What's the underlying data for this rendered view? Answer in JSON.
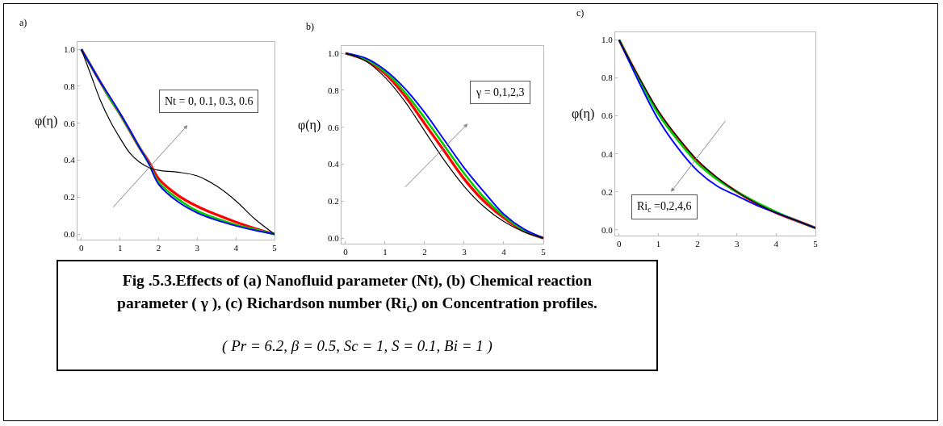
{
  "chart_data": [
    {
      "type": "line",
      "ylabel": "φ(η)",
      "xlim": [
        -0.1,
        5.0
      ],
      "ylim": [
        -0.03,
        1.04
      ],
      "xticks": [
        0,
        1,
        2,
        3,
        4,
        5
      ],
      "yticks": [
        {
          "value": 0,
          "label": "0.0"
        },
        {
          "value": 0.2,
          "label": "0.2"
        },
        {
          "value": 0.4,
          "label": "0.4"
        },
        {
          "value": 0.6,
          "label": "0.6"
        },
        {
          "value": 0.8,
          "label": "0.8"
        },
        {
          "value": 1,
          "label": "1.0"
        }
      ],
      "grid": false,
      "marker": "none",
      "line_style": "solid",
      "x": [
        0,
        0.25,
        0.5,
        0.75,
        1,
        1.25,
        1.5,
        1.75,
        2,
        2.5,
        3,
        3.5,
        4,
        4.5,
        5
      ],
      "series": [
        {
          "color": "#ff0000",
          "values": [
            1,
            0.91,
            0.82,
            0.73,
            0.65,
            0.56,
            0.47,
            0.39,
            0.3,
            0.21,
            0.15,
            0.105,
            0.065,
            0.03,
            0
          ]
        },
        {
          "color": "#00cc00",
          "values": [
            1,
            0.91,
            0.82,
            0.73,
            0.65,
            0.56,
            0.47,
            0.38,
            0.28,
            0.19,
            0.125,
            0.085,
            0.05,
            0.025,
            0
          ]
        },
        {
          "color": "#0000ff",
          "values": [
            1,
            0.91,
            0.82,
            0.74,
            0.655,
            0.565,
            0.47,
            0.38,
            0.27,
            0.175,
            0.115,
            0.075,
            0.045,
            0.02,
            0
          ]
        },
        {
          "color": "#000000",
          "values": [
            1,
            0.86,
            0.72,
            0.61,
            0.52,
            0.44,
            0.39,
            0.36,
            0.345,
            0.335,
            0.315,
            0.26,
            0.18,
            0.08,
            0
          ]
        }
      ],
      "annotations": [
        "a)",
        "Nt = 0, 0.1, 0.3, 0.6",
        "Fig .5.3.Effects of (a) Nanofluid parameter (Nt), (b) Chemical reaction parameter ( γ ), (c) Richardson number (Ri$_{c}$) on Concentration profiles.",
        "( Pr = 6.2, β = 0.5, Sc = 1, S = 0.1, Bi = 1 )"
      ]
    },
    {
      "type": "line",
      "ylabel": "φ(η)",
      "xlim": [
        -0.1,
        5.0
      ],
      "ylim": [
        -0.03,
        1.04
      ],
      "xticks": [
        0,
        1,
        2,
        3,
        4,
        5
      ],
      "yticks": [
        {
          "value": 0,
          "label": "0.0"
        },
        {
          "value": 0.2,
          "label": "0.2"
        },
        {
          "value": 0.4,
          "label": "0.4"
        },
        {
          "value": 0.6,
          "label": "0.6"
        },
        {
          "value": 0.8,
          "label": "0.8"
        },
        {
          "value": 1,
          "label": "1.0"
        }
      ],
      "grid": false,
      "marker": "none",
      "line_style": "solid",
      "x": [
        0,
        0.5,
        1,
        1.5,
        2,
        2.5,
        3,
        3.5,
        4,
        4.5,
        5
      ],
      "series": [
        {
          "color": "#ff0000",
          "values": [
            1,
            0.965,
            0.89,
            0.77,
            0.62,
            0.47,
            0.32,
            0.2,
            0.11,
            0.04,
            0
          ]
        },
        {
          "color": "#00cc00",
          "values": [
            1,
            0.97,
            0.9,
            0.79,
            0.65,
            0.5,
            0.35,
            0.22,
            0.12,
            0.045,
            0
          ]
        },
        {
          "color": "#0000ff",
          "values": [
            1,
            0.975,
            0.91,
            0.81,
            0.68,
            0.53,
            0.38,
            0.25,
            0.13,
            0.05,
            0
          ]
        },
        {
          "color": "#000000",
          "values": [
            1,
            0.96,
            0.87,
            0.74,
            0.58,
            0.42,
            0.28,
            0.17,
            0.09,
            0.035,
            0
          ]
        }
      ],
      "annotations": [
        "b)",
        "γ = 0,1,2,3"
      ]
    },
    {
      "type": "line",
      "ylabel": "φ(η)",
      "xlim": [
        -0.1,
        5.0
      ],
      "ylim": [
        -0.03,
        1.04
      ],
      "xticks": [
        0,
        1,
        2,
        3,
        4,
        5
      ],
      "yticks": [
        {
          "value": 0,
          "label": "0.0"
        },
        {
          "value": 0.2,
          "label": "0.2"
        },
        {
          "value": 0.4,
          "label": "0.4"
        },
        {
          "value": 0.6,
          "label": "0.6"
        },
        {
          "value": 0.8,
          "label": "0.8"
        },
        {
          "value": 1,
          "label": "1.0"
        }
      ],
      "grid": false,
      "marker": "none",
      "line_style": "solid",
      "x": [
        0,
        0.5,
        1,
        1.5,
        2,
        2.5,
        3,
        3.5,
        4,
        4.5,
        5
      ],
      "series": [
        {
          "color": "#ff0000",
          "values": [
            1,
            0.8,
            0.62,
            0.48,
            0.36,
            0.27,
            0.2,
            0.14,
            0.09,
            0.05,
            0.01
          ]
        },
        {
          "color": "#00cc00",
          "values": [
            1,
            0.795,
            0.61,
            0.47,
            0.35,
            0.265,
            0.2,
            0.145,
            0.095,
            0.05,
            0.01
          ]
        },
        {
          "color": "#0000ff",
          "values": [
            1,
            0.78,
            0.58,
            0.43,
            0.31,
            0.23,
            0.18,
            0.13,
            0.09,
            0.05,
            0.01
          ]
        },
        {
          "color": "#000000",
          "values": [
            1,
            0.805,
            0.625,
            0.485,
            0.365,
            0.275,
            0.2,
            0.14,
            0.09,
            0.05,
            0.01
          ]
        }
      ],
      "annotations": [
        "c)",
        "Ri$_{c}$ =0,2,4,6"
      ]
    }
  ]
}
